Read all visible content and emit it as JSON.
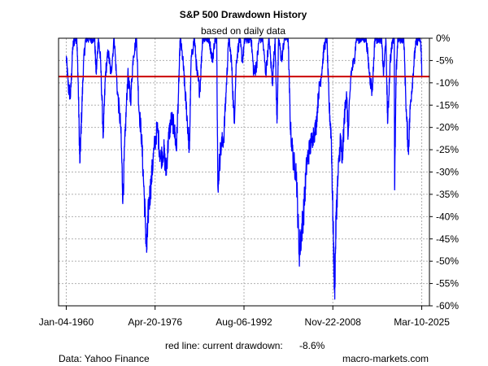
{
  "chart_data": {
    "type": "line",
    "title": "S&P 500 Drawdown History",
    "subtitle": "based on daily data",
    "xlabel": "",
    "ylabel": "",
    "ylim": [
      -60,
      0
    ],
    "y_ticks": [
      {
        "value": 0,
        "label": "0%"
      },
      {
        "value": -5,
        "label": "-5%"
      },
      {
        "value": -10,
        "label": "-10%"
      },
      {
        "value": -15,
        "label": "-15%"
      },
      {
        "value": -20,
        "label": "-20%"
      },
      {
        "value": -25,
        "label": "-25%"
      },
      {
        "value": -30,
        "label": "-30%"
      },
      {
        "value": -35,
        "label": "-35%"
      },
      {
        "value": -40,
        "label": "-40%"
      },
      {
        "value": -45,
        "label": "-45%"
      },
      {
        "value": -50,
        "label": "-50%"
      },
      {
        "value": -55,
        "label": "-55%"
      },
      {
        "value": -60,
        "label": "-60%"
      }
    ],
    "xlim": [
      1958.6,
      2026.6
    ],
    "x_ticks": [
      {
        "value": 1960.01,
        "label": "Jan-04-1960"
      },
      {
        "value": 1976.3,
        "label": "Apr-20-1976"
      },
      {
        "value": 1992.6,
        "label": "Aug-06-1992"
      },
      {
        "value": 2008.89,
        "label": "Nov-22-2008"
      },
      {
        "value": 2025.19,
        "label": "Mar-10-2025"
      }
    ],
    "grid": true,
    "series": [
      {
        "name": "S&P 500 drawdown",
        "color": "#0000ff",
        "points": [
          [
            1960.0,
            -4
          ],
          [
            1960.4,
            -11
          ],
          [
            1960.8,
            -13
          ],
          [
            1961.2,
            -2
          ],
          [
            1961.6,
            0
          ],
          [
            1961.95,
            0
          ],
          [
            1962.2,
            -10
          ],
          [
            1962.5,
            -28
          ],
          [
            1962.8,
            -18
          ],
          [
            1963.2,
            -5
          ],
          [
            1963.6,
            0
          ],
          [
            1964.0,
            0
          ],
          [
            1964.6,
            0
          ],
          [
            1965.2,
            0
          ],
          [
            1965.5,
            -8
          ],
          [
            1965.9,
            0
          ],
          [
            1966.3,
            -5
          ],
          [
            1966.8,
            -22
          ],
          [
            1967.2,
            -8
          ],
          [
            1967.7,
            -3
          ],
          [
            1968.2,
            -8
          ],
          [
            1968.8,
            0
          ],
          [
            1969.4,
            -12
          ],
          [
            1970.0,
            -20
          ],
          [
            1970.4,
            -36
          ],
          [
            1970.8,
            -22
          ],
          [
            1971.3,
            -8
          ],
          [
            1971.8,
            -14
          ],
          [
            1972.3,
            -4
          ],
          [
            1972.9,
            0
          ],
          [
            1973.3,
            -15
          ],
          [
            1973.8,
            -22
          ],
          [
            1974.3,
            -35
          ],
          [
            1974.75,
            -48
          ],
          [
            1975.1,
            -38
          ],
          [
            1975.6,
            -32
          ],
          [
            1976.1,
            -25
          ],
          [
            1976.7,
            -20
          ],
          [
            1977.3,
            -27
          ],
          [
            1977.9,
            -25
          ],
          [
            1978.3,
            -30
          ],
          [
            1978.8,
            -22
          ],
          [
            1979.3,
            -18
          ],
          [
            1979.8,
            -20
          ],
          [
            1980.2,
            -25
          ],
          [
            1980.6,
            -12
          ],
          [
            1980.9,
            0
          ],
          [
            1981.4,
            -5
          ],
          [
            1981.8,
            -12
          ],
          [
            1982.3,
            -20
          ],
          [
            1982.6,
            -25
          ],
          [
            1982.9,
            -5
          ],
          [
            1983.5,
            0
          ],
          [
            1984.0,
            -8
          ],
          [
            1984.5,
            -12
          ],
          [
            1985.0,
            0
          ],
          [
            1985.6,
            0
          ],
          [
            1986.2,
            0
          ],
          [
            1986.8,
            -5
          ],
          [
            1987.3,
            0
          ],
          [
            1987.6,
            0
          ],
          [
            1987.8,
            -33
          ],
          [
            1988.3,
            -25
          ],
          [
            1988.9,
            -22
          ],
          [
            1989.4,
            -10
          ],
          [
            1989.8,
            0
          ],
          [
            1990.3,
            -5
          ],
          [
            1990.8,
            -19
          ],
          [
            1991.2,
            -5
          ],
          [
            1991.8,
            0
          ],
          [
            1992.3,
            -5
          ],
          [
            1992.8,
            0
          ],
          [
            1993.3,
            0
          ],
          [
            1993.9,
            0
          ],
          [
            1994.4,
            -8
          ],
          [
            1994.9,
            -6
          ],
          [
            1995.4,
            0
          ],
          [
            1996.0,
            0
          ],
          [
            1996.6,
            -8
          ],
          [
            1997.2,
            0
          ],
          [
            1997.8,
            -10
          ],
          [
            1998.3,
            0
          ],
          [
            1998.65,
            -19
          ],
          [
            1998.95,
            0
          ],
          [
            1999.5,
            -5
          ],
          [
            2000.0,
            0
          ],
          [
            2000.7,
            0
          ],
          [
            2001.1,
            -20
          ],
          [
            2001.7,
            -28
          ],
          [
            2002.2,
            -30
          ],
          [
            2002.7,
            -48
          ],
          [
            2003.1,
            -44
          ],
          [
            2003.6,
            -38
          ],
          [
            2004.1,
            -28
          ],
          [
            2004.6,
            -25
          ],
          [
            2005.2,
            -22
          ],
          [
            2005.8,
            -20
          ],
          [
            2006.3,
            -12
          ],
          [
            2006.8,
            -8
          ],
          [
            2007.3,
            -2
          ],
          [
            2007.8,
            0
          ],
          [
            2008.2,
            -15
          ],
          [
            2008.6,
            -22
          ],
          [
            2008.9,
            -40
          ],
          [
            2009.2,
            -57
          ],
          [
            2009.5,
            -40
          ],
          [
            2009.8,
            -32
          ],
          [
            2010.3,
            -22
          ],
          [
            2010.6,
            -28
          ],
          [
            2011.0,
            -18
          ],
          [
            2011.4,
            -12
          ],
          [
            2011.7,
            -22
          ],
          [
            2012.2,
            -8
          ],
          [
            2012.8,
            -5
          ],
          [
            2013.2,
            0
          ],
          [
            2013.8,
            0
          ],
          [
            2014.4,
            0
          ],
          [
            2015.0,
            0
          ],
          [
            2015.6,
            -8
          ],
          [
            2016.1,
            -12
          ],
          [
            2016.6,
            0
          ],
          [
            2017.2,
            0
          ],
          [
            2017.8,
            0
          ],
          [
            2018.2,
            -8
          ],
          [
            2018.6,
            0
          ],
          [
            2018.95,
            -19
          ],
          [
            2019.4,
            -5
          ],
          [
            2019.9,
            0
          ],
          [
            2020.15,
            0
          ],
          [
            2020.22,
            -34
          ],
          [
            2020.5,
            -8
          ],
          [
            2020.8,
            0
          ],
          [
            2021.3,
            0
          ],
          [
            2021.9,
            0
          ],
          [
            2022.4,
            -18
          ],
          [
            2022.75,
            -25
          ],
          [
            2023.1,
            -15
          ],
          [
            2023.6,
            -8
          ],
          [
            2024.0,
            -2
          ],
          [
            2024.5,
            0
          ],
          [
            2024.9,
            0
          ],
          [
            2025.1,
            -3
          ],
          [
            2025.2,
            -8.6
          ]
        ]
      }
    ],
    "reference_line": {
      "value": -8.6,
      "color": "#cc0000"
    },
    "note": {
      "label": "red line: current drawdown:",
      "value": "-8.6%"
    },
    "footer": {
      "source": "Data: Yahoo Finance",
      "website": "macro-markets.com"
    }
  }
}
